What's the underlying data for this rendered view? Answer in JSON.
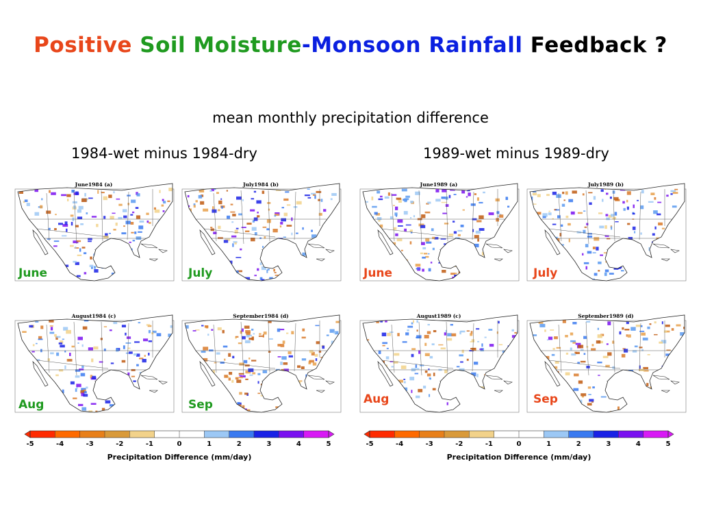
{
  "title": {
    "segments": [
      {
        "text": "Positive ",
        "color": "#e8461a"
      },
      {
        "text": "Soil Moisture",
        "color": "#1f9a1f"
      },
      {
        "text": "-Monsoon Rainfall ",
        "color": "#0a1fe0"
      },
      {
        "text": "Feedback ?",
        "color": "#000000"
      }
    ]
  },
  "subtitle": "mean monthly precipitation difference",
  "groups": [
    {
      "label": "1984-wet minus 1984-dry",
      "maps": [
        {
          "title": "June1984    (a)",
          "month": "June",
          "month_color": "#1f9a1f"
        },
        {
          "title": "July1984    (b)",
          "month": "July",
          "month_color": "#1f9a1f"
        },
        {
          "title": "August1984    (c)",
          "month": "Aug",
          "month_color": "#1f9a1f"
        },
        {
          "title": "September1984    (d)",
          "month": "Sep",
          "month_color": "#1f9a1f"
        }
      ]
    },
    {
      "label": "1989-wet minus 1989-dry",
      "maps": [
        {
          "title": "June1989    (a)",
          "month": "June",
          "month_color": "#e8461a"
        },
        {
          "title": "July1989    (b)",
          "month": "July",
          "month_color": "#e8461a"
        },
        {
          "title": "August1989    (c)",
          "month": "Aug",
          "month_color": "#e8461a"
        },
        {
          "title": "September1989    (d)",
          "month": "Sep",
          "month_color": "#e8461a"
        }
      ]
    }
  ],
  "colorbar": {
    "ticks": [
      "-5",
      "-4",
      "-3",
      "-2",
      "-1",
      "0",
      "1",
      "2",
      "3",
      "4",
      "5"
    ],
    "label": "Precipitation Difference (mm/day)",
    "colors": [
      "#ff2a00",
      "#ff6a00",
      "#e8801a",
      "#d99a3a",
      "#f2d28a",
      "#ffffff",
      "#ffffff",
      "#9cc8f5",
      "#3a7af0",
      "#1a22e6",
      "#7a10f0",
      "#d81af5"
    ]
  }
}
